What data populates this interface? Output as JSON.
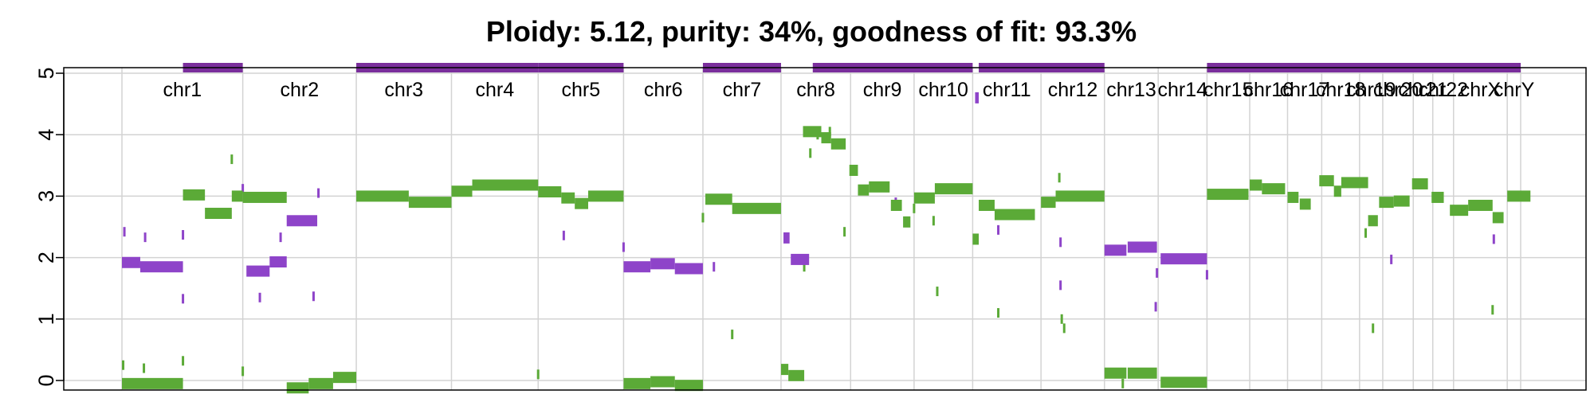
{
  "chart_data": {
    "type": "segments",
    "title": "Ploidy: 5.12, purity: 34%, goodness of fit: 93.3%",
    "xlabel": "",
    "ylabel": "",
    "ylim": [
      -0.2,
      5.2
    ],
    "yticks": [
      0,
      1,
      2,
      3,
      4,
      5
    ],
    "grid": true,
    "colors": {
      "major": "#5BAA37",
      "minor": "#8E44C9",
      "clonal_bar": "#7A2E9C",
      "grid": "#D3D3D3"
    },
    "chromosomes": [
      {
        "name": "chr1",
        "start": 0,
        "end": 9.9
      },
      {
        "name": "chr2",
        "start": 9.9,
        "end": 19.2
      },
      {
        "name": "chr3",
        "start": 19.2,
        "end": 27.0
      },
      {
        "name": "chr4",
        "start": 27.0,
        "end": 34.1
      },
      {
        "name": "chr5",
        "start": 34.1,
        "end": 41.1
      },
      {
        "name": "chr6",
        "start": 41.1,
        "end": 47.6
      },
      {
        "name": "chr7",
        "start": 47.6,
        "end": 54.0
      },
      {
        "name": "chr8",
        "start": 54.0,
        "end": 59.7
      },
      {
        "name": "chr9",
        "start": 59.7,
        "end": 64.9
      },
      {
        "name": "chr10",
        "start": 64.9,
        "end": 69.7
      },
      {
        "name": "chr11",
        "start": 69.7,
        "end": 75.3
      },
      {
        "name": "chr12",
        "start": 75.3,
        "end": 80.5
      },
      {
        "name": "chr13",
        "start": 80.5,
        "end": 84.9
      },
      {
        "name": "chr14",
        "start": 84.9,
        "end": 88.9
      },
      {
        "name": "chr15",
        "start": 88.9,
        "end": 92.4
      },
      {
        "name": "chr16",
        "start": 92.4,
        "end": 95.5
      },
      {
        "name": "chr17",
        "start": 95.5,
        "end": 98.3
      },
      {
        "name": "chr18",
        "start": 98.3,
        "end": 101.4
      },
      {
        "name": "chr19",
        "start": 101.4,
        "end": 103.3
      },
      {
        "name": "chr20",
        "start": 103.3,
        "end": 105.8
      },
      {
        "name": "chr21",
        "start": 105.8,
        "end": 107.4
      },
      {
        "name": "chr22",
        "start": 107.4,
        "end": 109.1
      },
      {
        "name": "chrX",
        "start": 109.1,
        "end": 113.5
      },
      {
        "name": "chrY",
        "start": 113.5,
        "end": 114.6
      }
    ],
    "chr_labels": [
      "chr1",
      "chr2",
      "chr3",
      "chr4",
      "chr5",
      "chr6",
      "chr7",
      "chr8",
      "chr9",
      "chr10",
      "chr11",
      "chr12",
      "chr13",
      "chr14",
      "chr15",
      "chr16",
      "chr17",
      "chr18",
      "chr19",
      "chr20",
      "chr21",
      "chr22",
      "chrX",
      "chrY"
    ],
    "clonal_bars": [
      [
        5.0,
        9.9
      ],
      [
        19.2,
        34.1
      ],
      [
        34.1,
        41.1
      ],
      [
        47.6,
        54.0
      ],
      [
        56.6,
        69.7
      ],
      [
        70.2,
        80.5
      ],
      [
        88.9,
        114.6
      ]
    ],
    "major_segments": [
      [
        0,
        5.0,
        -0.05
      ],
      [
        5.0,
        6.8,
        3.02
      ],
      [
        6.8,
        9.0,
        2.72
      ],
      [
        9.0,
        9.9,
        3.0
      ],
      [
        9.9,
        13.5,
        2.98
      ],
      [
        13.5,
        15.3,
        -0.12
      ],
      [
        15.3,
        17.3,
        -0.05
      ],
      [
        17.3,
        19.2,
        0.05
      ],
      [
        19.2,
        23.5,
        3.0
      ],
      [
        23.5,
        27.0,
        2.9
      ],
      [
        27.0,
        28.7,
        3.08
      ],
      [
        28.7,
        34.1,
        3.18
      ],
      [
        34.1,
        36.0,
        3.07
      ],
      [
        36.0,
        37.1,
        2.97
      ],
      [
        37.1,
        38.2,
        2.88
      ],
      [
        38.2,
        41.1,
        3.0
      ],
      [
        41.1,
        43.3,
        -0.05
      ],
      [
        43.3,
        45.3,
        -0.02
      ],
      [
        45.3,
        47.6,
        -0.08
      ],
      [
        47.8,
        50.0,
        2.95
      ],
      [
        50.0,
        54.0,
        2.8
      ],
      [
        54.0,
        54.6,
        0.18
      ],
      [
        54.6,
        55.9,
        0.08
      ],
      [
        55.8,
        57.3,
        4.05
      ],
      [
        57.3,
        58.1,
        3.95
      ],
      [
        58.1,
        59.3,
        3.85
      ],
      [
        59.6,
        60.3,
        3.42
      ],
      [
        60.3,
        61.2,
        3.1
      ],
      [
        61.2,
        62.9,
        3.15
      ],
      [
        63.0,
        63.9,
        2.85
      ],
      [
        64.0,
        64.6,
        2.58
      ],
      [
        64.9,
        66.6,
        2.97
      ],
      [
        66.6,
        69.7,
        3.12
      ],
      [
        69.7,
        70.2,
        2.3
      ],
      [
        70.2,
        71.5,
        2.85
      ],
      [
        71.5,
        74.8,
        2.7
      ],
      [
        75.3,
        76.5,
        2.9
      ],
      [
        76.5,
        80.5,
        3.0
      ],
      [
        80.5,
        82.3,
        0.12
      ],
      [
        82.4,
        84.8,
        0.12
      ],
      [
        85.1,
        88.9,
        -0.03
      ],
      [
        88.9,
        92.3,
        3.03
      ],
      [
        92.4,
        93.4,
        3.18
      ],
      [
        93.4,
        95.3,
        3.12
      ],
      [
        95.5,
        96.4,
        2.98
      ],
      [
        96.5,
        97.4,
        2.87
      ],
      [
        98.1,
        99.3,
        3.25
      ],
      [
        99.3,
        99.9,
        3.08
      ],
      [
        99.9,
        102.1,
        3.22
      ],
      [
        102.1,
        102.9,
        2.6
      ],
      [
        103.0,
        104.2,
        2.9
      ],
      [
        104.2,
        105.5,
        2.92
      ],
      [
        105.7,
        107.0,
        3.2
      ],
      [
        107.3,
        108.3,
        2.98
      ],
      [
        108.8,
        110.3,
        2.77
      ],
      [
        110.3,
        112.3,
        2.85
      ],
      [
        112.3,
        113.2,
        2.65
      ],
      [
        113.5,
        115.4,
        3.0
      ]
    ],
    "minor_segments": [
      [
        0,
        1.5,
        1.92
      ],
      [
        1.5,
        5.0,
        1.85
      ],
      [
        10.2,
        12.1,
        1.78
      ],
      [
        12.1,
        13.5,
        1.93
      ],
      [
        13.5,
        16.0,
        2.6
      ],
      [
        41.1,
        43.3,
        1.85
      ],
      [
        43.3,
        45.3,
        1.9
      ],
      [
        45.3,
        47.6,
        1.82
      ],
      [
        54.2,
        54.7,
        2.32
      ],
      [
        54.8,
        56.3,
        1.97
      ],
      [
        69.9,
        70.2,
        4.6
      ],
      [
        80.5,
        82.3,
        2.12
      ],
      [
        82.4,
        84.8,
        2.17
      ],
      [
        85.1,
        88.9,
        1.98
      ]
    ],
    "major_ticks": [
      [
        0.1,
        0.25
      ],
      [
        1.8,
        0.2
      ],
      [
        5.0,
        0.32
      ],
      [
        9.0,
        3.6
      ],
      [
        9.9,
        0.15
      ],
      [
        34.1,
        0.1
      ],
      [
        47.6,
        2.65
      ],
      [
        50.0,
        0.75
      ],
      [
        56.4,
        3.7
      ],
      [
        57.0,
        4.0
      ],
      [
        58.0,
        4.05
      ],
      [
        59.2,
        2.42
      ],
      [
        60.6,
        3.1
      ],
      [
        64.9,
        2.8
      ],
      [
        66.5,
        2.6
      ],
      [
        66.8,
        1.45
      ],
      [
        71.8,
        1.1
      ],
      [
        76.8,
        3.3
      ],
      [
        77.2,
        0.85
      ],
      [
        77.0,
        1.0
      ],
      [
        82.0,
        -0.05
      ],
      [
        101.9,
        2.4
      ],
      [
        102.5,
        0.85
      ],
      [
        112.3,
        1.15
      ],
      [
        55.9,
        1.85
      ]
    ],
    "minor_ticks": [
      [
        0.2,
        2.42
      ],
      [
        1.9,
        2.33
      ],
      [
        5.0,
        2.37
      ],
      [
        5.0,
        1.33
      ],
      [
        9.9,
        3.12
      ],
      [
        11.3,
        1.35
      ],
      [
        13.0,
        2.33
      ],
      [
        15.7,
        1.37
      ],
      [
        16.1,
        3.05
      ],
      [
        36.2,
        2.36
      ],
      [
        41.1,
        2.17
      ],
      [
        48.5,
        1.85
      ],
      [
        63.4,
        2.9
      ],
      [
        71.8,
        2.45
      ],
      [
        76.9,
        2.25
      ],
      [
        76.9,
        1.55
      ],
      [
        84.7,
        1.2
      ],
      [
        84.8,
        1.75
      ],
      [
        88.9,
        1.72
      ],
      [
        104.0,
        1.97
      ],
      [
        112.4,
        2.3
      ]
    ]
  }
}
